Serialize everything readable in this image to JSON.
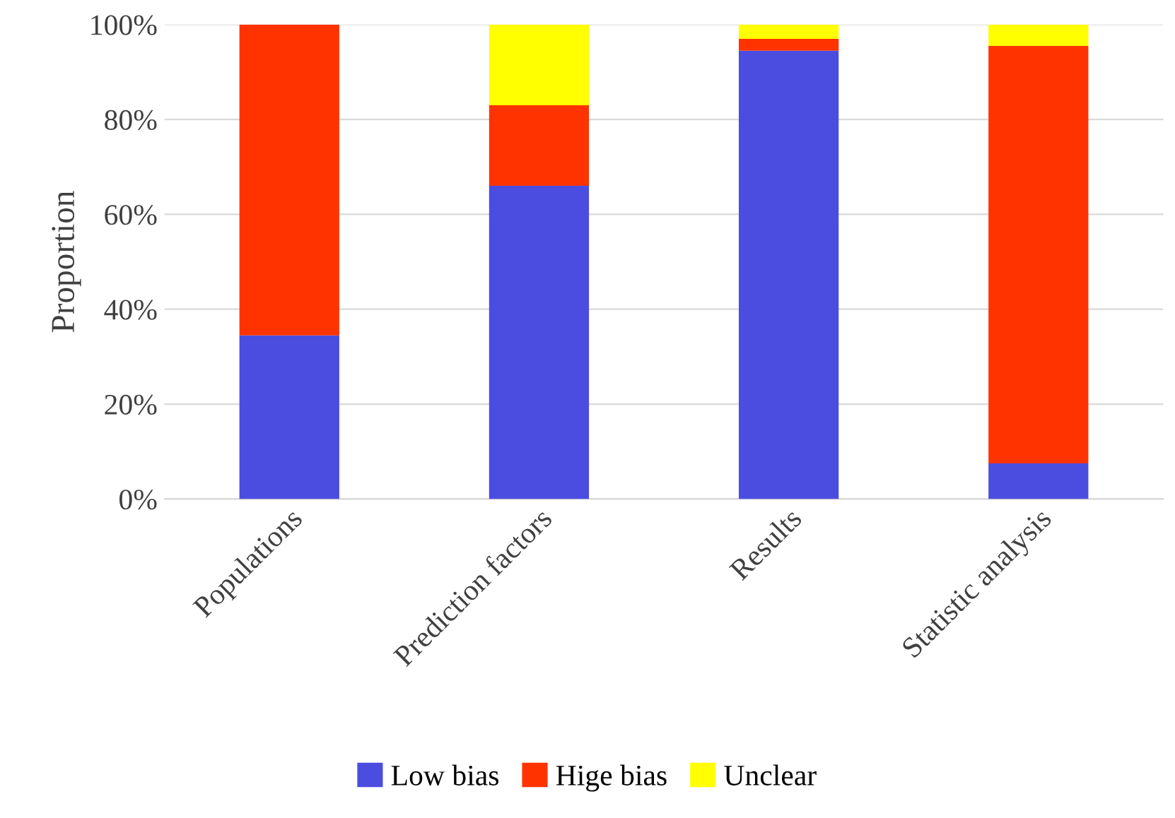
{
  "chart_data": {
    "type": "bar",
    "stacked": true,
    "ylabel": "Proportion",
    "categories": [
      "Populations",
      "Prediction factors",
      "Results",
      "Statistic analysis"
    ],
    "series": [
      {
        "name": "Low bias",
        "color": "#4b4de0",
        "values": [
          34.5,
          66,
          94.5,
          7.5
        ]
      },
      {
        "name": "Hige bias",
        "color": "#ff3300",
        "values": [
          65.5,
          17,
          2.5,
          88
        ]
      },
      {
        "name": "Unclear",
        "color": "#ffff00",
        "values": [
          0,
          17,
          3,
          4.5
        ]
      }
    ],
    "ylim": [
      0,
      100
    ],
    "yticks": [
      {
        "value": 0,
        "label": "0%"
      },
      {
        "value": 20,
        "label": "20%"
      },
      {
        "value": 40,
        "label": "40%"
      },
      {
        "value": 60,
        "label": "60%"
      },
      {
        "value": 80,
        "label": "80%"
      },
      {
        "value": 100,
        "label": "100%"
      }
    ],
    "grid": "y",
    "legend": "bottom"
  }
}
